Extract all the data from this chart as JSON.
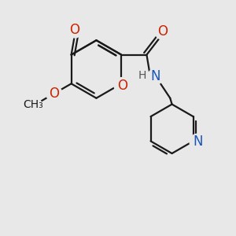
{
  "bg_color": "#e8e8e8",
  "bond_color": "#1a1a1a",
  "bond_width": 1.6,
  "figsize": [
    3.0,
    3.0
  ],
  "dpi": 100,
  "xlim": [
    0.0,
    5.5
  ],
  "ylim": [
    -1.5,
    5.0
  ]
}
